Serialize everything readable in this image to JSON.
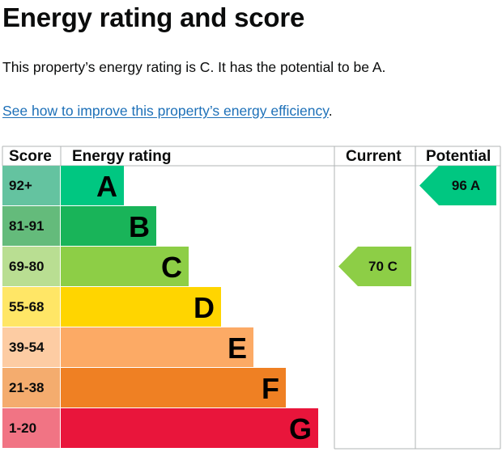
{
  "page": {
    "title": "Energy rating and score",
    "summary": "This property’s energy rating is C. It has the potential to be A.",
    "link_text": "See how to improve this property’s energy efficiency",
    "link_suffix": "."
  },
  "chart_data": {
    "type": "bar",
    "columns": {
      "score": "Score",
      "energy_rating": "Energy rating",
      "current": "Current",
      "potential": "Potential"
    },
    "bands": [
      {
        "letter": "A",
        "range": "92+",
        "min": 92,
        "max": 100,
        "color": "#00c781",
        "label_color": "#64c3a0"
      },
      {
        "letter": "B",
        "range": "81-91",
        "min": 81,
        "max": 91,
        "color": "#19b459",
        "label_color": "#64bb7b"
      },
      {
        "letter": "C",
        "range": "69-80",
        "min": 69,
        "max": 80,
        "color": "#8dce46",
        "label_color": "#b9de92"
      },
      {
        "letter": "D",
        "range": "55-68",
        "min": 55,
        "max": 68,
        "color": "#ffd500",
        "label_color": "#ffe666"
      },
      {
        "letter": "E",
        "range": "39-54",
        "min": 39,
        "max": 54,
        "color": "#fcaa65",
        "label_color": "#fdcca3"
      },
      {
        "letter": "F",
        "range": "21-38",
        "min": 21,
        "max": 38,
        "color": "#ef8023",
        "label_color": "#f4ac6e"
      },
      {
        "letter": "G",
        "range": "1-20",
        "min": 1,
        "max": 20,
        "color": "#e9153b",
        "label_color": "#f17484"
      }
    ],
    "current": {
      "score": "70",
      "band": "C",
      "color": "#8dce46"
    },
    "potential": {
      "score": "96",
      "band": "A",
      "color": "#00c781"
    }
  }
}
